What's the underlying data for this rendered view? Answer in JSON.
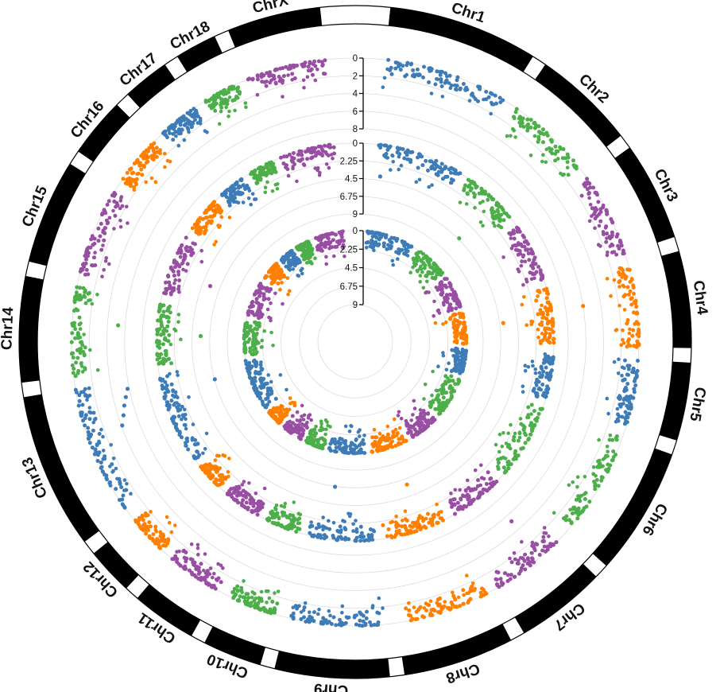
{
  "chart_data": {
    "type": "scatter",
    "subtype": "circular-manhattan",
    "title": "",
    "xlabel": "",
    "ylabel": "",
    "grid": true,
    "legend": "none",
    "chromosomes": [
      {
        "name": "Chr1",
        "size": 200
      },
      {
        "name": "Chr2",
        "size": 137
      },
      {
        "name": "Chr3",
        "size": 132
      },
      {
        "name": "Chr4",
        "size": 129
      },
      {
        "name": "Chr5",
        "size": 104
      },
      {
        "name": "Chr6",
        "size": 171
      },
      {
        "name": "Chr7",
        "size": 121
      },
      {
        "name": "Chr8",
        "size": 148
      },
      {
        "name": "Chr9",
        "size": 153
      },
      {
        "name": "Chr10",
        "size": 79
      },
      {
        "name": "Chr11",
        "size": 87
      },
      {
        "name": "Chr12",
        "size": 63
      },
      {
        "name": "Chr13",
        "size": 208
      },
      {
        "name": "Chr14",
        "size": 141
      },
      {
        "name": "Chr15",
        "size": 140
      },
      {
        "name": "Chr16",
        "size": 80
      },
      {
        "name": "Chr17",
        "size": 63
      },
      {
        "name": "Chr18",
        "size": 56
      },
      {
        "name": "ChrX",
        "size": 125
      }
    ],
    "colors": [
      "#3E7CB8",
      "#4DAF4A",
      "#984EA3",
      "#FF7F00"
    ],
    "tracks": [
      {
        "ticks": [
          "0",
          "2",
          "4",
          "6",
          "8"
        ],
        "ylim": [
          0,
          8
        ]
      },
      {
        "ticks": [
          "0",
          "2.25",
          "4.5",
          "6.75",
          "9"
        ],
        "ylim": [
          0,
          9
        ]
      },
      {
        "ticks": [
          "0",
          "2.25",
          "4.5",
          "6.75",
          "9"
        ],
        "ylim": [
          0,
          9
        ]
      }
    ],
    "outliers": [
      {
        "track": 1,
        "chr": "Chr13",
        "pos": 0.62,
        "value": 4.1
      },
      {
        "track": 1,
        "chr": "Chr13",
        "pos": 0.7,
        "value": 4.6
      },
      {
        "track": 1,
        "chr": "Chr13",
        "pos": 0.78,
        "value": 5.0
      },
      {
        "track": 1,
        "chr": "Chr13",
        "pos": 0.85,
        "value": 5.4
      },
      {
        "track": 1,
        "chr": "Chr13",
        "pos": 0.92,
        "value": 5.8
      },
      {
        "track": 1,
        "chr": "Chr14",
        "pos": 0.6,
        "value": 5.2
      },
      {
        "track": 1,
        "chr": "Chr4",
        "pos": 0.4,
        "value": 6.0
      },
      {
        "track": 1,
        "chr": "Chr7",
        "pos": 0.3,
        "value": 5.2
      },
      {
        "track": 2,
        "chr": "Chr4",
        "pos": 0.5,
        "value": 6.3
      },
      {
        "track": 2,
        "chr": "Chr8",
        "pos": 0.4,
        "value": 6.0
      },
      {
        "track": 2,
        "chr": "Chr13",
        "pos": 0.8,
        "value": 6.8
      },
      {
        "track": 2,
        "chr": "Chr14",
        "pos": 0.5,
        "value": 5.6
      },
      {
        "track": 2,
        "chr": "Chr2",
        "pos": 0.6,
        "value": 6.6
      },
      {
        "track": 2,
        "chr": "Chr9",
        "pos": 0.7,
        "value": 6.7
      },
      {
        "track": 2,
        "chr": "Chr15",
        "pos": 0.4,
        "value": 5.5
      },
      {
        "track": 2,
        "chr": "Chr1",
        "pos": 0.1,
        "value": 4.0
      }
    ]
  }
}
